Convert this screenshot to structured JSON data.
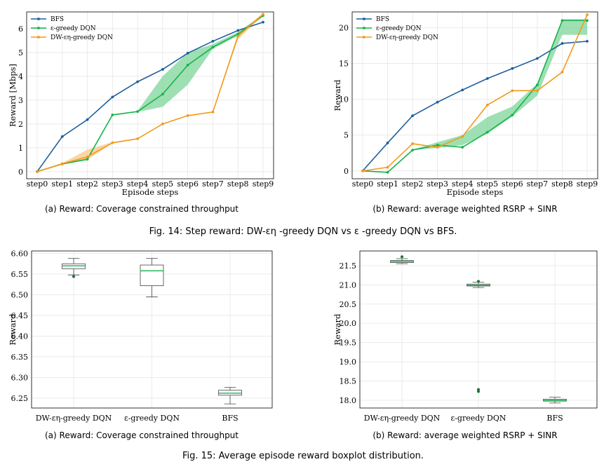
{
  "colors": {
    "bfs": "#1f5f9c",
    "egreedy": "#17b34b",
    "dw": "#f39a1c",
    "band_green": "#7dd59a",
    "band_orange": "#f8c88a"
  },
  "captions": {
    "fig14_a": "(a) Reward: Coverage constrained throughput",
    "fig14_b": "(b) Reward: average weighted RSRP + SINR",
    "fig14": "Fig. 14: Step reward: DW-εη -greedy DQN vs ε -greedy DQN vs BFS.",
    "fig15_a": "(a) Reward: Coverage constrained throughput",
    "fig15_b": "(b) Reward: average weighted RSRP + SINR",
    "fig15": "Fig. 15: Average episode reward boxplot distribution."
  },
  "chart_data": [
    {
      "id": "fig14a",
      "type": "line",
      "xlabel": "Episode steps",
      "ylabel": "Reward [Mbps]",
      "categories": [
        "step0",
        "step1",
        "step2",
        "step3",
        "step4",
        "step5",
        "step6",
        "step7",
        "step8",
        "step9"
      ],
      "ylim": [
        -0.3,
        6.7
      ],
      "yticks": [
        0,
        1,
        2,
        3,
        4,
        5,
        6
      ],
      "legend": [
        "BFS",
        "ε-greedy DQN",
        "DW-εη-greedy DQN"
      ],
      "series": [
        {
          "name": "BFS",
          "color": "#1f5f9c",
          "values": [
            0,
            1.47,
            2.18,
            3.13,
            3.77,
            4.29,
            4.97,
            5.47,
            5.92,
            6.27
          ]
        },
        {
          "name": "ε-greedy DQN",
          "color": "#17b34b",
          "values": [
            0,
            0.32,
            0.52,
            2.38,
            2.52,
            3.25,
            4.47,
            5.22,
            5.77,
            6.55
          ],
          "band_low": [
            0,
            0.3,
            0.48,
            2.35,
            2.5,
            2.72,
            3.65,
            5.15,
            5.7,
            6.5
          ],
          "band_high": [
            0,
            0.34,
            0.56,
            2.4,
            2.55,
            4.0,
            5.0,
            5.35,
            5.85,
            6.6
          ]
        },
        {
          "name": "DW-εη-greedy DQN",
          "color": "#f39a1c",
          "values": [
            0,
            0.33,
            0.62,
            1.21,
            1.38,
            2.0,
            2.35,
            2.5,
            5.68,
            6.6
          ],
          "band_low": [
            0,
            0.3,
            0.5,
            1.18,
            1.35,
            1.98,
            2.33,
            2.48,
            5.55,
            6.55
          ],
          "band_high": [
            0,
            0.36,
            0.92,
            1.24,
            1.4,
            2.02,
            2.37,
            2.52,
            5.8,
            6.65
          ]
        }
      ]
    },
    {
      "id": "fig14b",
      "type": "line",
      "xlabel": "Episode steps",
      "ylabel": "Reward",
      "categories": [
        "step0",
        "step1",
        "step2",
        "step3",
        "step4",
        "step5",
        "step6",
        "step7",
        "step8",
        "step9"
      ],
      "ylim": [
        -1.1,
        22.2
      ],
      "yticks": [
        0,
        5,
        10,
        15,
        20
      ],
      "legend": [
        "BFS",
        "ε-greedy DQN",
        "DW-εη-greedy DQN"
      ],
      "series": [
        {
          "name": "BFS",
          "color": "#1f5f9c",
          "values": [
            0,
            3.9,
            7.7,
            9.6,
            11.3,
            12.9,
            14.3,
            15.7,
            17.8,
            18.1
          ]
        },
        {
          "name": "ε-greedy DQN",
          "color": "#17b34b",
          "values": [
            0,
            -0.2,
            2.9,
            3.6,
            3.3,
            5.4,
            7.8,
            12.0,
            21.0,
            21.0
          ],
          "band_low": [
            0,
            -0.2,
            2.9,
            3.2,
            3.6,
            5.2,
            7.6,
            10.5,
            19.0,
            19.0
          ],
          "band_high": [
            0,
            -0.2,
            3.0,
            4.0,
            5.0,
            7.5,
            9.0,
            12.2,
            21.2,
            21.2
          ]
        },
        {
          "name": "DW-εη-greedy DQN",
          "color": "#f39a1c",
          "values": [
            0,
            0.5,
            3.8,
            3.3,
            4.8,
            9.2,
            11.2,
            11.2,
            13.8,
            21.8
          ]
        }
      ]
    },
    {
      "id": "fig15a",
      "type": "box",
      "xlabel": "",
      "ylabel": "Reward",
      "categories": [
        "DW-εη-greedy DQN",
        "ε-greedy DQN",
        "BFS"
      ],
      "ylim": [
        6.226,
        6.606
      ],
      "yticks": [
        6.25,
        6.3,
        6.35,
        6.4,
        6.45,
        6.5,
        6.55,
        6.6
      ],
      "ytick_labels": [
        "6.25",
        "6.30",
        "6.35",
        "6.40",
        "6.45",
        "6.50",
        "6.55",
        "6.60"
      ],
      "boxes": [
        {
          "min": 6.548,
          "q1": 6.563,
          "median": 6.57,
          "q3": 6.575,
          "max": 6.588,
          "outliers": [
            6.544
          ]
        },
        {
          "min": 6.495,
          "q1": 6.522,
          "median": 6.558,
          "q3": 6.572,
          "max": 6.588,
          "outliers": []
        },
        {
          "min": 6.236,
          "q1": 6.257,
          "median": 6.262,
          "q3": 6.269,
          "max": 6.276,
          "outliers": []
        }
      ]
    },
    {
      "id": "fig15b",
      "type": "box",
      "xlabel": "",
      "ylabel": "Reward",
      "categories": [
        "DW-εη-greedy DQN",
        "ε-greedy DQN",
        "BFS"
      ],
      "ylim": [
        17.8,
        21.88
      ],
      "yticks": [
        18.0,
        18.5,
        19.0,
        19.5,
        20.0,
        20.5,
        21.0,
        21.5
      ],
      "ytick_labels": [
        "18.0",
        "18.5",
        "19.0",
        "19.5",
        "20.0",
        "20.5",
        "21.0",
        "21.5"
      ],
      "boxes": [
        {
          "min": 21.55,
          "q1": 21.58,
          "median": 21.61,
          "q3": 21.63,
          "max": 21.68,
          "outliers": [
            21.73
          ]
        },
        {
          "min": 20.93,
          "q1": 20.97,
          "median": 20.99,
          "q3": 21.02,
          "max": 21.07,
          "outliers": [
            21.09,
            18.28,
            18.23
          ]
        },
        {
          "min": 17.93,
          "q1": 17.98,
          "median": 18.0,
          "q3": 18.03,
          "max": 18.08,
          "outliers": []
        }
      ]
    }
  ]
}
